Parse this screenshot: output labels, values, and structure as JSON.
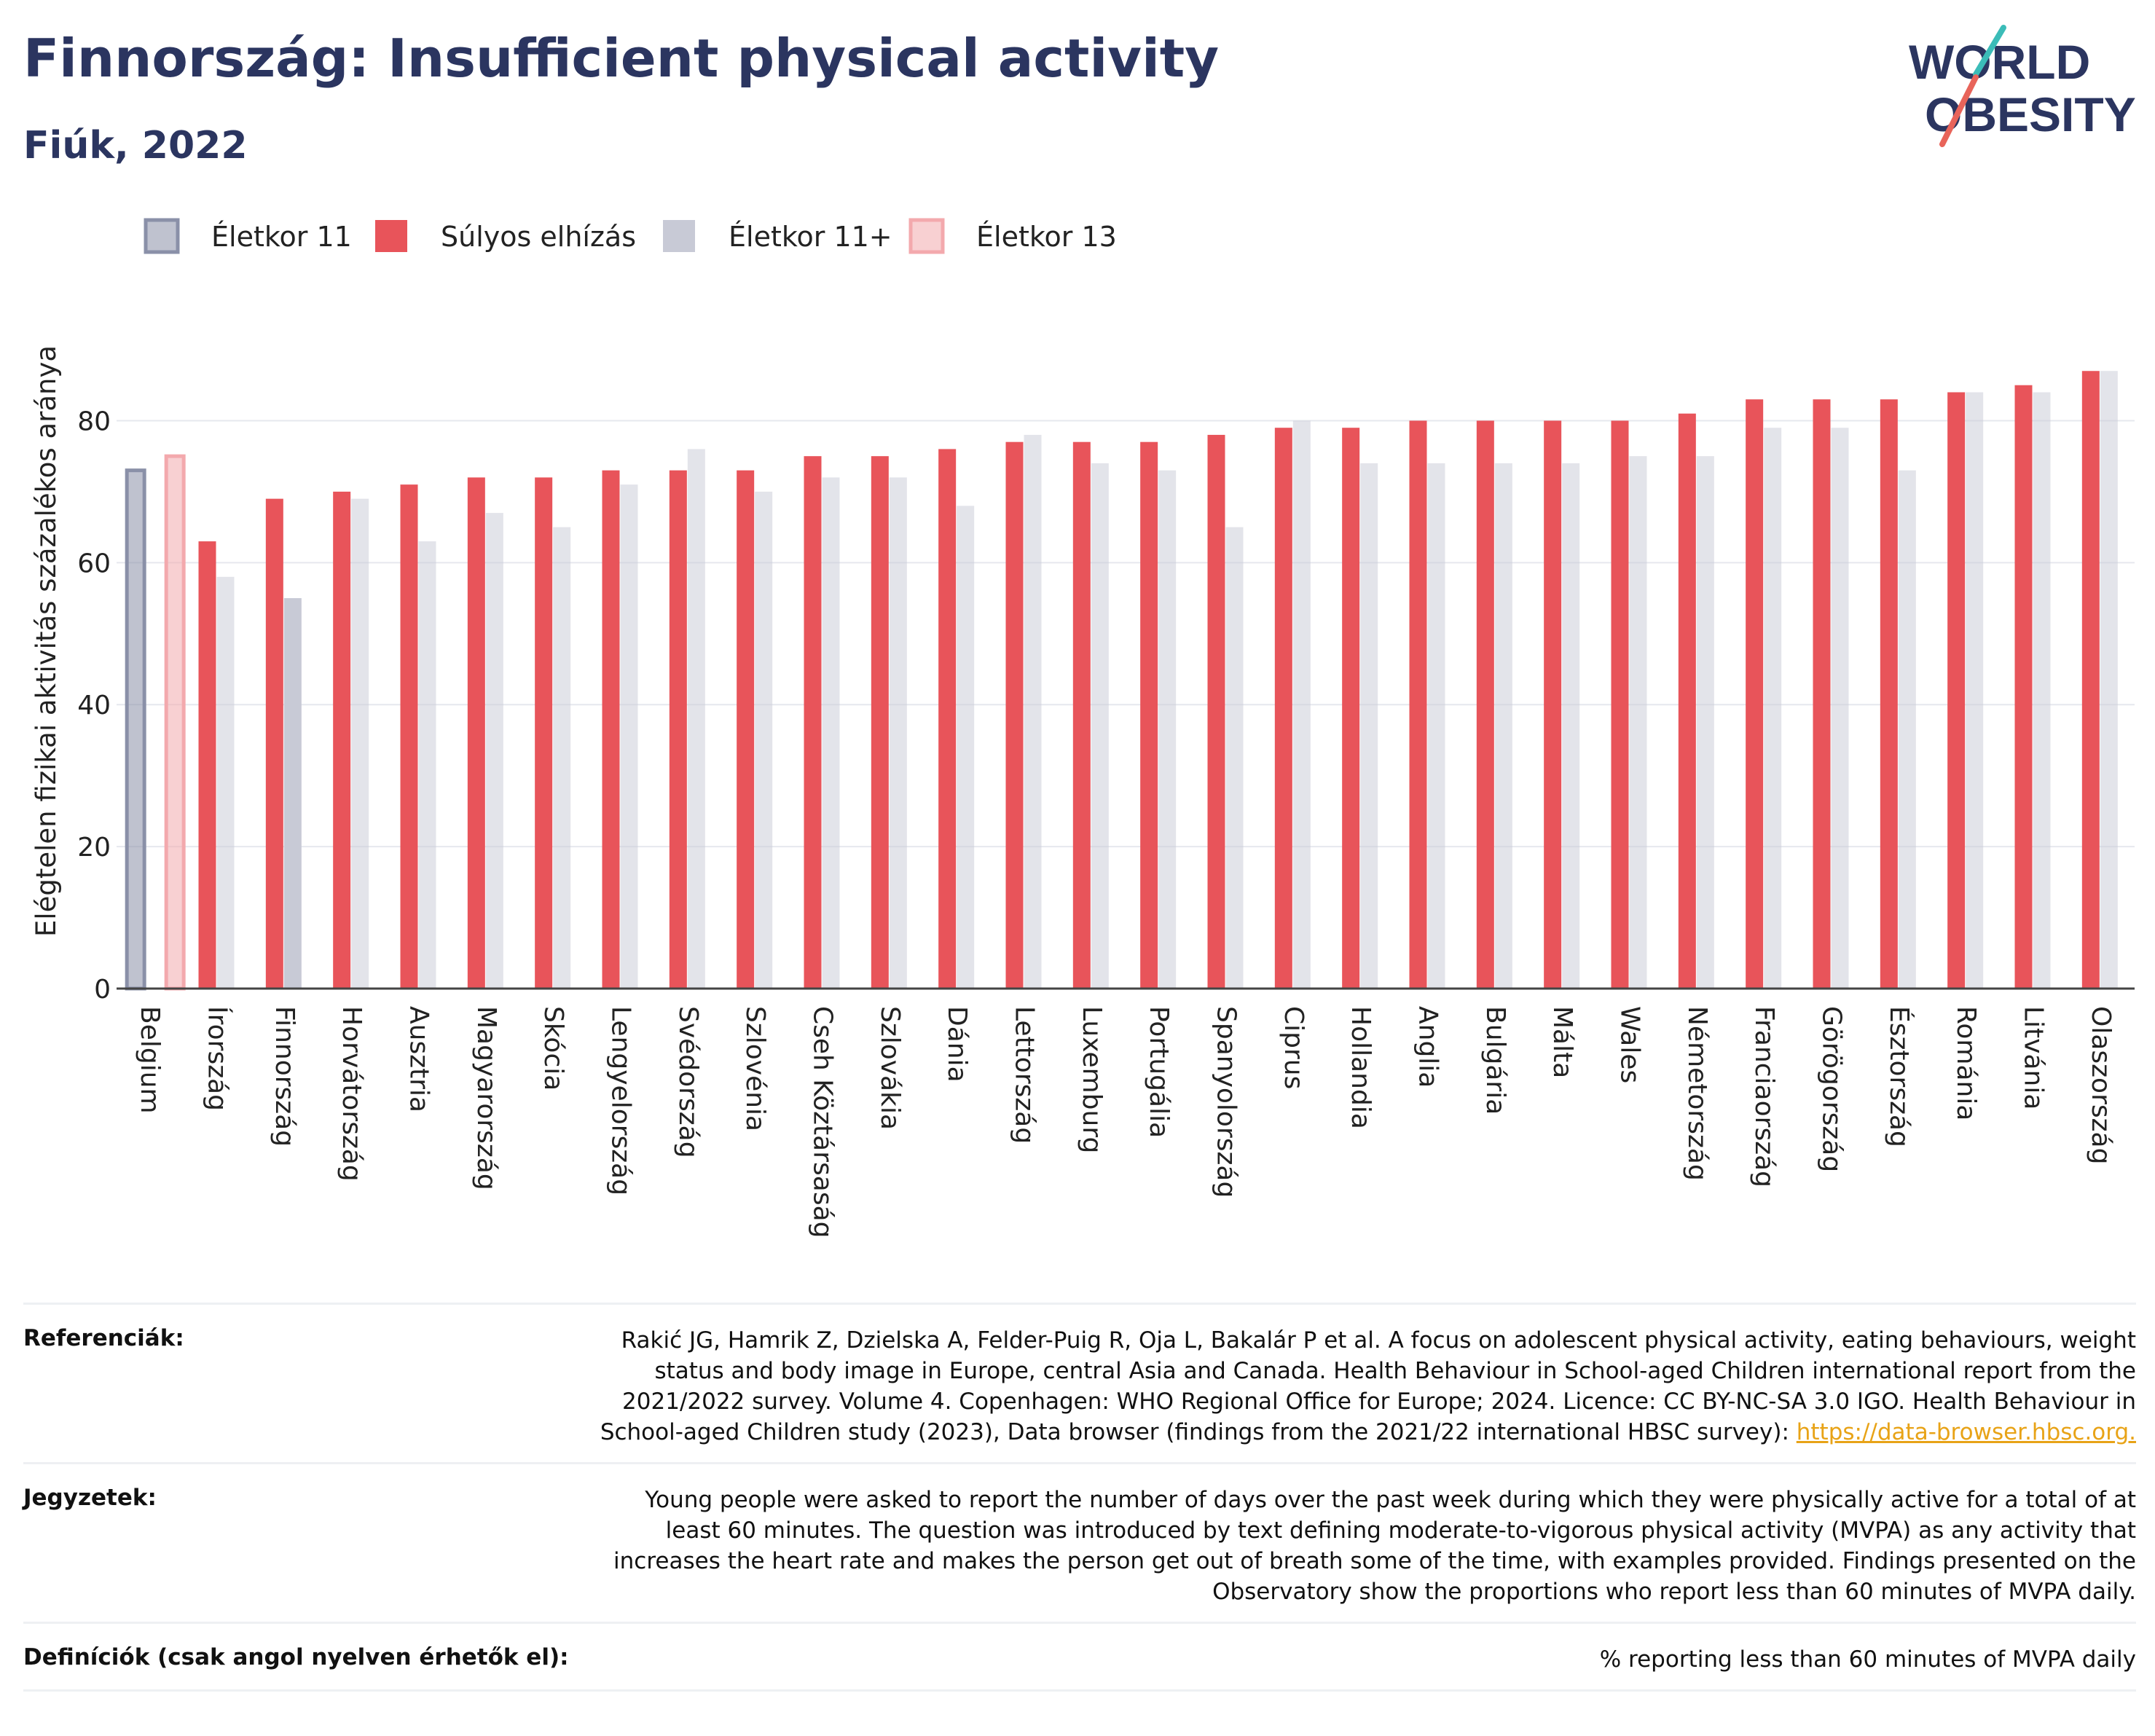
{
  "header": {
    "title": "Finnország: Insufficient physical activity",
    "subtitle": "Fiúk, 2022"
  },
  "logo": {
    "line1": "WORLD",
    "line2": "OBESITY"
  },
  "colors": {
    "age11": "#8a90a8",
    "severe_obesity": "#e8545a",
    "age11plus": "#c8cad6",
    "age13": "#f3a9ad",
    "grid": "#e6e8ee",
    "axis": "#444444",
    "link": "#e8a317"
  },
  "chart_data": {
    "type": "bar",
    "title": "Finnország: Insufficient physical activity",
    "subtitle": "Fiúk, 2022",
    "ylabel": "Elégtelen fizikai aktivitás százalékos aránya",
    "xlabel": "",
    "ylim": [
      0,
      90
    ],
    "yticks": [
      0,
      20,
      40,
      60,
      80
    ],
    "grid": true,
    "legend_position": "top-left",
    "categories": [
      "Belgium",
      "Írország",
      "Finnország",
      "Horvátország",
      "Ausztria",
      "Magyarország",
      "Skócia",
      "Lengyelország",
      "Svédország",
      "Szlovénia",
      "Cseh Köztársaság",
      "Szlovákia",
      "Dánia",
      "Lettország",
      "Luxemburg",
      "Portugália",
      "Spanyolország",
      "Ciprus",
      "Hollandia",
      "Anglia",
      "Bulgária",
      "Málta",
      "Wales",
      "Németország",
      "Franciaország",
      "Görögország",
      "Észtország",
      "Románia",
      "Litvánia",
      "Olaszország"
    ],
    "series": [
      {
        "name": "Életkor 11",
        "values": [
          73,
          null,
          null,
          null,
          null,
          null,
          null,
          null,
          null,
          null,
          null,
          null,
          null,
          null,
          null,
          null,
          null,
          null,
          null,
          null,
          null,
          null,
          null,
          null,
          null,
          null,
          null,
          null,
          null,
          null
        ]
      },
      {
        "name": "Életkor 13",
        "values": [
          75,
          null,
          null,
          null,
          null,
          null,
          null,
          null,
          null,
          null,
          null,
          null,
          null,
          null,
          null,
          null,
          null,
          null,
          null,
          null,
          null,
          null,
          null,
          null,
          null,
          null,
          null,
          null,
          null,
          null
        ]
      },
      {
        "name": "Súlyos elhízás",
        "values": [
          null,
          63,
          69,
          70,
          71,
          72,
          72,
          73,
          73,
          73,
          75,
          75,
          76,
          77,
          77,
          77,
          78,
          79,
          79,
          80,
          80,
          80,
          80,
          81,
          83,
          83,
          83,
          84,
          85,
          87
        ]
      },
      {
        "name": "Életkor 11+",
        "values": [
          null,
          58,
          55,
          69,
          63,
          67,
          65,
          71,
          76,
          70,
          72,
          72,
          68,
          78,
          74,
          73,
          65,
          80,
          74,
          74,
          74,
          74,
          75,
          75,
          79,
          79,
          73,
          84,
          84,
          87
        ]
      }
    ]
  },
  "footer": {
    "references_label": "Referenciák:",
    "references_text": "Rakić JG, Hamrik Z, Dzielska A, Felder-Puig R, Oja L, Bakalár P et al. A focus on adolescent physical activity, eating behaviours, weight status and body image in Europe, central Asia and Canada. Health Behaviour in School-aged Children international report from the 2021/2022 survey. Volume 4. Copenhagen: WHO Regional Office for Europe; 2024. Licence: CC BY-NC-SA 3.0 IGO. Health Behaviour in School-aged Children study (2023), Data browser (findings from the 2021/22 international HBSC survey):",
    "references_link": "https://data-browser.hbsc.org.",
    "notes_label": "Jegyzetek:",
    "notes_text": "Young people were asked to report the number of days over the past week during which they were physically active for a total of at least 60 minutes. The question was introduced by text defining moderate-to-vigorous physical activity (MVPA) as any activity that increases the heart rate and makes the person get out of breath some of the time, with examples provided. Findings presented on the Observatory show the proportions who report less than 60 minutes of MVPA daily.",
    "definitions_label": "Definíciók (csak angol nyelven érhetők el):",
    "definitions_text": "% reporting less than 60 minutes of MVPA daily"
  }
}
